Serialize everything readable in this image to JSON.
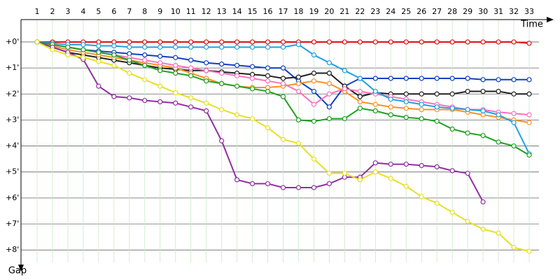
{
  "chart_data": {
    "type": "line",
    "x_label": "Time",
    "y_label": "Gap",
    "categories": [
      "1",
      "2",
      "3",
      "4",
      "5",
      "6",
      "7",
      "8",
      "9",
      "10",
      "11",
      "12",
      "13",
      "14",
      "15",
      "16",
      "17",
      "18",
      "19",
      "20",
      "21",
      "22",
      "23",
      "24",
      "25",
      "26",
      "27",
      "28",
      "29",
      "30",
      "31",
      "32",
      "33"
    ],
    "ylim": [
      -0.86,
      8.48
    ],
    "y_inverted": true,
    "grid": true,
    "yticks": [
      {
        "value": 0,
        "label": "+0'"
      },
      {
        "value": 1,
        "label": "+1'"
      },
      {
        "value": 2,
        "label": "+2'"
      },
      {
        "value": 3,
        "label": "+3'"
      },
      {
        "value": 4,
        "label": "+4'"
      },
      {
        "value": 5,
        "label": "+5'"
      },
      {
        "value": 6,
        "label": "+6'"
      },
      {
        "value": 7,
        "label": "+7'"
      },
      {
        "value": 8,
        "label": "+8'"
      }
    ],
    "series": [
      {
        "color": "#e01010",
        "values": [
          0,
          0,
          0,
          0,
          0,
          0,
          0,
          0,
          0,
          0,
          0,
          0,
          0,
          0,
          0,
          0,
          0,
          0,
          0,
          0,
          0,
          0,
          0,
          0,
          0,
          0,
          0,
          0,
          0,
          0,
          0,
          0,
          0.05
        ]
      },
      {
        "color": "#1040c0",
        "values": [
          0,
          0.1,
          0.2,
          0.3,
          0.35,
          0.4,
          0.45,
          0.5,
          0.55,
          0.6,
          0.7,
          0.8,
          0.85,
          0.9,
          0.95,
          1.0,
          1.0,
          1.5,
          1.9,
          2.5,
          1.7,
          1.4,
          1.4,
          1.4,
          1.4,
          1.4,
          1.4,
          1.4,
          1.4,
          1.45,
          1.45,
          1.45,
          1.45
        ]
      },
      {
        "color": "#202020",
        "values": [
          0,
          0.2,
          0.4,
          0.5,
          0.6,
          0.7,
          0.8,
          0.9,
          1.0,
          1.05,
          1.1,
          1.1,
          1.15,
          1.2,
          1.25,
          1.3,
          1.4,
          1.35,
          1.2,
          1.2,
          1.7,
          2.1,
          1.95,
          2.0,
          2.0,
          2.0,
          2.0,
          2.0,
          1.9,
          1.9,
          1.9,
          2.0,
          2.0
        ]
      },
      {
        "color": "#ff9020",
        "values": [
          0,
          0.15,
          0.3,
          0.4,
          0.5,
          0.6,
          0.7,
          0.8,
          0.9,
          1.0,
          1.2,
          1.4,
          1.6,
          1.7,
          1.75,
          1.75,
          1.7,
          1.6,
          1.5,
          1.6,
          1.9,
          2.3,
          2.4,
          2.5,
          2.55,
          2.6,
          2.6,
          2.6,
          2.7,
          2.8,
          2.9,
          3.0,
          3.1
        ]
      },
      {
        "color": "#ff70c0",
        "values": [
          0,
          0.1,
          0.2,
          0.3,
          0.4,
          0.5,
          0.6,
          0.7,
          0.8,
          0.9,
          1.0,
          1.1,
          1.2,
          1.3,
          1.4,
          1.5,
          1.6,
          1.9,
          2.4,
          2.0,
          1.8,
          1.9,
          2.0,
          2.1,
          2.2,
          2.3,
          2.4,
          2.5,
          2.6,
          2.6,
          2.7,
          2.75,
          2.8
        ]
      },
      {
        "color": "#20a0e0",
        "values": [
          0,
          0.05,
          0.1,
          0.1,
          0.15,
          0.15,
          0.2,
          0.2,
          0.2,
          0.2,
          0.2,
          0.2,
          0.2,
          0.2,
          0.2,
          0.2,
          0.2,
          0.1,
          0.5,
          0.8,
          1.1,
          1.4,
          1.9,
          2.2,
          2.3,
          2.4,
          2.5,
          2.55,
          2.6,
          2.65,
          2.8,
          3.1,
          4.3
        ]
      },
      {
        "color": "#20a020",
        "values": [
          0,
          0.1,
          0.2,
          0.3,
          0.4,
          0.5,
          0.7,
          0.9,
          1.1,
          1.2,
          1.3,
          1.5,
          1.6,
          1.7,
          1.8,
          1.9,
          2.1,
          3.0,
          3.05,
          2.95,
          2.95,
          2.55,
          2.65,
          2.8,
          2.9,
          2.95,
          3.05,
          3.35,
          3.5,
          3.6,
          3.85,
          4.0,
          4.35
        ]
      },
      {
        "color": "#9030a0",
        "values": [
          0,
          0.2,
          0.4,
          0.67,
          1.7,
          2.1,
          2.15,
          2.25,
          2.3,
          2.35,
          2.5,
          2.65,
          3.8,
          5.3,
          5.45,
          5.45,
          5.6,
          5.6,
          5.6,
          5.45,
          5.2,
          5.2,
          4.65,
          4.7,
          4.7,
          4.75,
          4.8,
          4.95,
          5.05,
          6.15,
          null,
          null,
          null
        ]
      },
      {
        "color": "#e8e020",
        "values": [
          0,
          0.3,
          0.5,
          0.6,
          0.75,
          0.9,
          1.2,
          1.45,
          1.7,
          1.95,
          2.15,
          2.35,
          2.6,
          2.8,
          2.95,
          3.3,
          3.75,
          3.9,
          4.5,
          5.05,
          5.05,
          5.3,
          5.0,
          5.25,
          5.55,
          5.95,
          6.2,
          6.55,
          6.9,
          7.2,
          7.35,
          7.9,
          8.05
        ]
      }
    ]
  }
}
